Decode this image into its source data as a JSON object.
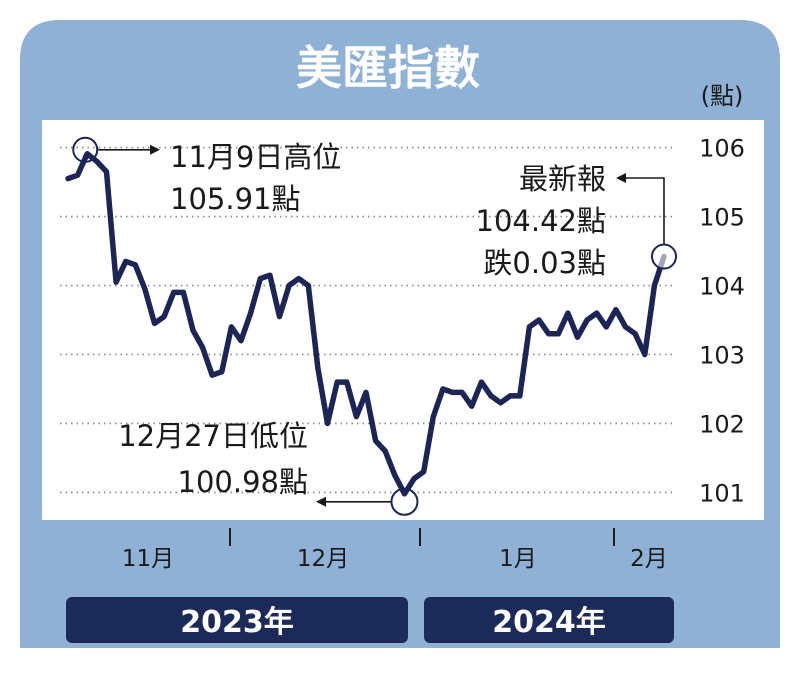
{
  "chart_data": {
    "type": "line",
    "title": "美匯指數",
    "unit": "(點)",
    "ylim": [
      100.6,
      106.4
    ],
    "yticks": [
      "106",
      "105",
      "104",
      "103",
      "102",
      "101"
    ],
    "grid": true,
    "colors": {
      "frame": "#8fb1d6",
      "line": "#1c2556",
      "year_bar": "#1c2a5a",
      "grid": "#888888"
    },
    "series": [
      {
        "values": [
          105.55,
          105.6,
          105.91,
          105.8,
          105.65,
          104.05,
          104.35,
          104.3,
          103.95,
          103.45,
          103.55,
          103.9,
          103.9,
          103.35,
          103.1,
          102.7,
          102.75,
          103.4,
          103.2,
          103.6,
          104.1,
          104.15,
          103.55,
          104.0,
          104.1,
          104.0,
          102.8,
          102.0,
          102.6,
          102.6,
          102.1,
          102.45,
          101.75,
          101.6,
          101.25,
          100.98,
          101.2,
          101.3,
          102.1,
          102.5,
          102.45,
          102.45,
          102.25,
          102.6,
          102.4,
          102.3,
          102.4,
          102.4,
          103.4,
          103.5,
          103.3,
          103.3,
          103.6,
          103.25,
          103.5,
          103.6,
          103.4,
          103.65,
          103.4,
          103.3,
          103.0,
          104.0,
          104.42
        ]
      }
    ],
    "annotations": {
      "high": {
        "line1": "11月9日高位",
        "line2": "105.91點",
        "value": 105.91
      },
      "low": {
        "line1": "12月27日低位",
        "line2": "100.98點",
        "value": 100.98
      },
      "latest": {
        "line1": "最新報",
        "line2": "104.42點",
        "line3": "跌0.03點",
        "value": 104.42
      }
    },
    "months": [
      "11月",
      "12月",
      "1月",
      "2月"
    ],
    "years": [
      "2023年",
      "2024年"
    ]
  }
}
